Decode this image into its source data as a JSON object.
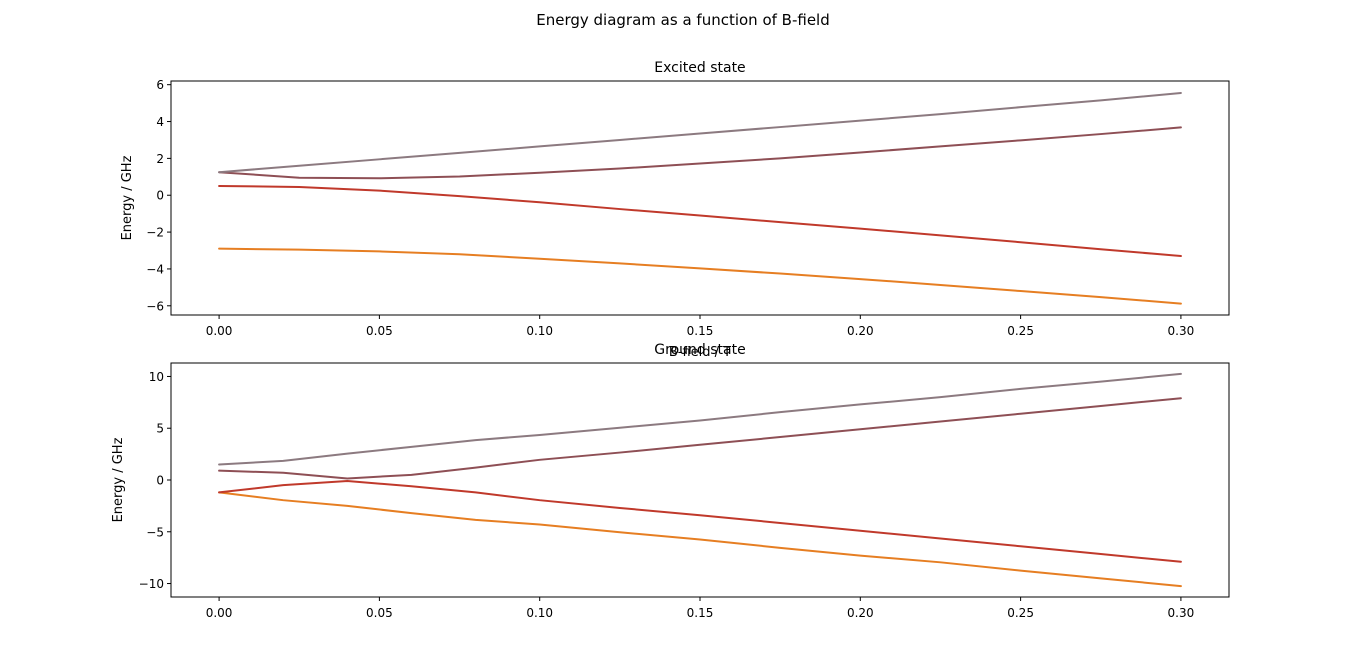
{
  "figure": {
    "suptitle": "Energy diagram as a function of B-field"
  },
  "chart_data": [
    {
      "type": "line",
      "title": "Excited state",
      "xlabel": "B-field / T",
      "ylabel": "Energy / GHz",
      "xlim": [
        -0.015,
        0.315
      ],
      "ylim": [
        -6.5,
        6.2
      ],
      "xticks": [
        0.0,
        0.05,
        0.1,
        0.15,
        0.2,
        0.25,
        0.3
      ],
      "xtick_labels": [
        "0.00",
        "0.05",
        "0.10",
        "0.15",
        "0.20",
        "0.25",
        "0.30"
      ],
      "yticks": [
        -6,
        -4,
        -2,
        0,
        2,
        4,
        6
      ],
      "ytick_labels": [
        "−6",
        "−4",
        "−2",
        "0",
        "2",
        "4",
        "6"
      ],
      "grid": false,
      "x": [
        0.0,
        0.025,
        0.05,
        0.075,
        0.1,
        0.125,
        0.15,
        0.175,
        0.2,
        0.225,
        0.25,
        0.275,
        0.3
      ],
      "series": [
        {
          "color": "#e67e22",
          "values": [
            -2.9,
            -2.95,
            -3.05,
            -3.2,
            -3.45,
            -3.7,
            -3.97,
            -4.25,
            -4.55,
            -4.87,
            -5.2,
            -5.53,
            -5.88
          ]
        },
        {
          "color": "#c0392b",
          "values": [
            0.5,
            0.45,
            0.25,
            -0.05,
            -0.38,
            -0.75,
            -1.1,
            -1.46,
            -1.81,
            -2.18,
            -2.55,
            -2.93,
            -3.3
          ]
        },
        {
          "color": "#8e4f55",
          "values": [
            1.25,
            0.95,
            0.92,
            1.02,
            1.22,
            1.45,
            1.72,
            2.0,
            2.32,
            2.65,
            2.98,
            3.32,
            3.68
          ]
        },
        {
          "color": "#8c7a80",
          "values": [
            1.25,
            1.6,
            1.95,
            2.3,
            2.65,
            3.0,
            3.35,
            3.7,
            4.05,
            4.4,
            4.78,
            5.15,
            5.55
          ]
        }
      ]
    },
    {
      "type": "line",
      "title": "Ground state",
      "xlabel": "",
      "ylabel": "Energy / GHz",
      "xlim": [
        -0.015,
        0.315
      ],
      "ylim": [
        -11.3,
        11.3
      ],
      "xticks": [
        0.0,
        0.05,
        0.1,
        0.15,
        0.2,
        0.25,
        0.3
      ],
      "xtick_labels": [
        "0.00",
        "0.05",
        "0.10",
        "0.15",
        "0.20",
        "0.25",
        "0.30"
      ],
      "yticks": [
        -10,
        -5,
        0,
        5,
        10
      ],
      "ytick_labels": [
        "−10",
        "−5",
        "0",
        "5",
        "10"
      ],
      "grid": false,
      "x": [
        0.0,
        0.02,
        0.04,
        0.06,
        0.08,
        0.1,
        0.125,
        0.15,
        0.175,
        0.2,
        0.225,
        0.25,
        0.275,
        0.3
      ],
      "series": [
        {
          "color": "#e67e22",
          "values": [
            -1.2,
            -1.95,
            -2.5,
            -3.2,
            -3.85,
            -4.3,
            -5.05,
            -5.75,
            -6.55,
            -7.3,
            -7.95,
            -8.75,
            -9.5,
            -10.25
          ]
        },
        {
          "color": "#c0392b",
          "values": [
            -1.2,
            -0.5,
            -0.1,
            -0.6,
            -1.2,
            -1.95,
            -2.7,
            -3.4,
            -4.15,
            -4.9,
            -5.65,
            -6.4,
            -7.15,
            -7.9
          ]
        },
        {
          "color": "#8e4f55",
          "values": [
            0.9,
            0.7,
            0.15,
            0.5,
            1.2,
            1.95,
            2.65,
            3.4,
            4.15,
            4.9,
            5.65,
            6.4,
            7.15,
            7.9
          ]
        },
        {
          "color": "#8c7a80",
          "values": [
            1.5,
            1.85,
            2.55,
            3.2,
            3.85,
            4.35,
            5.05,
            5.75,
            6.55,
            7.3,
            8.0,
            8.8,
            9.5,
            10.25
          ]
        }
      ]
    }
  ]
}
